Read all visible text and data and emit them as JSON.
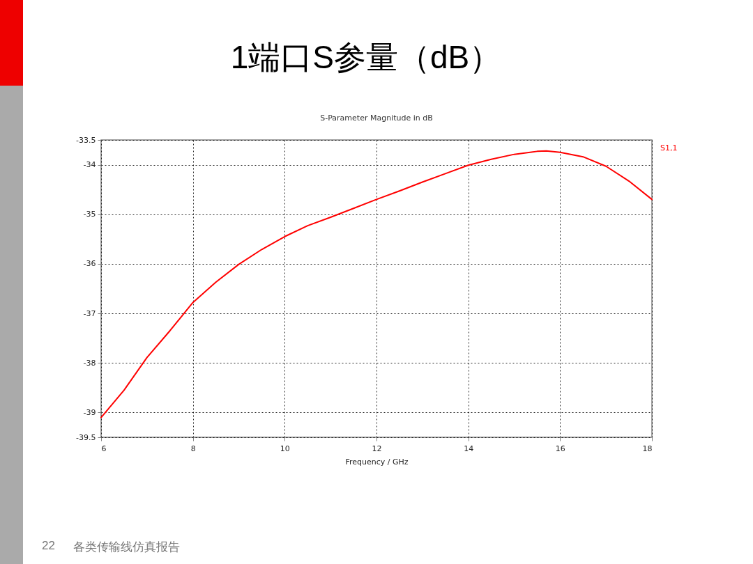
{
  "chart_data": {
    "type": "line",
    "title": "1端口S参量（dB）",
    "subtitle": "S-Parameter Magnitude in dB",
    "xlabel": "Frequency / GHz",
    "x": [
      6,
      6.5,
      7,
      7.5,
      8,
      8.5,
      9,
      9.5,
      10,
      10.5,
      11,
      11.5,
      12,
      12.5,
      13,
      13.5,
      14,
      14.5,
      15,
      15.5,
      15.7,
      16,
      16.5,
      17,
      17.5,
      18
    ],
    "series": [
      {
        "name": "S1,1",
        "color": "#ff0000",
        "values": [
          -39.1,
          -38.55,
          -37.89,
          -37.35,
          -36.78,
          -36.37,
          -36.01,
          -35.71,
          -35.45,
          -35.23,
          -35.06,
          -34.88,
          -34.7,
          -34.53,
          -34.35,
          -34.18,
          -34.01,
          -33.89,
          -33.79,
          -33.73,
          -33.72,
          -33.75,
          -33.84,
          -34.03,
          -34.33,
          -34.7
        ]
      }
    ],
    "xlim": [
      6,
      18
    ],
    "xticks": [
      6,
      8,
      10,
      12,
      14,
      16,
      18
    ],
    "ylim": [
      -39.5,
      -33.5
    ],
    "yticks": [
      -33.5,
      -34,
      -35,
      -36,
      -37,
      -38,
      -39,
      -39.5
    ],
    "grid": true,
    "legend": "top right",
    "line_style": "solid",
    "annotations": [
      "22",
      "各类传输线仿真报告"
    ]
  }
}
